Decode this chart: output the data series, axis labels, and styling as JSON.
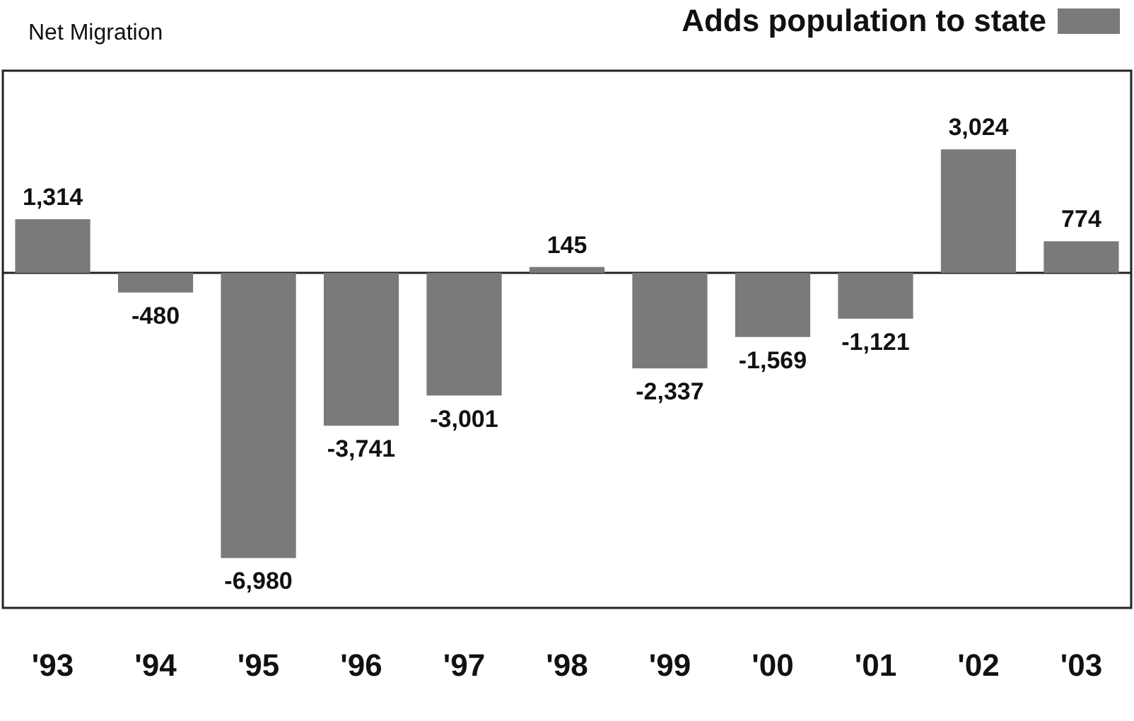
{
  "chart_data": {
    "type": "bar",
    "ylabel": "Net Migration",
    "categories": [
      "'93",
      "'94",
      "'95",
      "'96",
      "'97",
      "'98",
      "'99",
      "'00",
      "'01",
      "'02",
      "'03"
    ],
    "series": [
      {
        "name": "Adds population to state",
        "color": "#7a7a7a",
        "values": [
          1314,
          -480,
          -6980,
          -3741,
          -3001,
          145,
          -2337,
          -1569,
          -1121,
          3024,
          774
        ],
        "value_labels": [
          "1,314",
          "-480",
          "-6,980",
          "-3,741",
          "-3,001",
          "145",
          "-2,337",
          "-1,569",
          "-1,121",
          "3,024",
          "774"
        ]
      }
    ],
    "ylim": [
      -8200,
      4950
    ],
    "legend": "top right"
  }
}
